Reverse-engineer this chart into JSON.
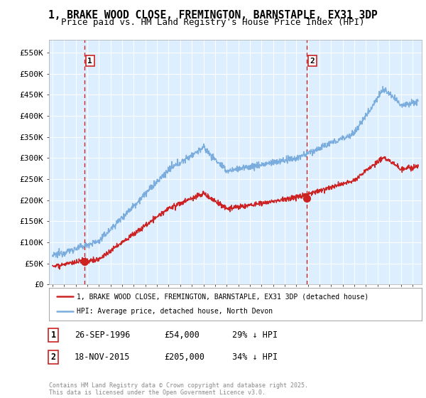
{
  "title1": "1, BRAKE WOOD CLOSE, FREMINGTON, BARNSTAPLE, EX31 3DP",
  "title2": "Price paid vs. HM Land Registry's House Price Index (HPI)",
  "ylabel_ticks": [
    "£0",
    "£50K",
    "£100K",
    "£150K",
    "£200K",
    "£250K",
    "£300K",
    "£350K",
    "£400K",
    "£450K",
    "£500K",
    "£550K"
  ],
  "ytick_vals": [
    0,
    50000,
    100000,
    150000,
    200000,
    250000,
    300000,
    350000,
    400000,
    450000,
    500000,
    550000
  ],
  "ylim": [
    0,
    580000
  ],
  "xlim_start": 1993.7,
  "xlim_end": 2025.8,
  "sale1_x": 1996.73,
  "sale1_y": 54000,
  "sale1_label": "1",
  "sale2_x": 2015.88,
  "sale2_y": 205000,
  "sale2_label": "2",
  "vline1_x": 1996.73,
  "vline2_x": 2015.88,
  "red_line_color": "#cc2222",
  "blue_line_color": "#7aaddd",
  "vline_color": "#cc2222",
  "bg_color": "#ffffff",
  "plot_bg_color": "#ddeeff",
  "grid_color": "#ffffff",
  "legend_entry1": "1, BRAKE WOOD CLOSE, FREMINGTON, BARNSTAPLE, EX31 3DP (detached house)",
  "legend_entry2": "HPI: Average price, detached house, North Devon",
  "table_rows": [
    {
      "num": "1",
      "date": "26-SEP-1996",
      "price": "£54,000",
      "hpi": "29% ↓ HPI"
    },
    {
      "num": "2",
      "date": "18-NOV-2015",
      "price": "£205,000",
      "hpi": "34% ↓ HPI"
    }
  ],
  "footer": "Contains HM Land Registry data © Crown copyright and database right 2025.\nThis data is licensed under the Open Government Licence v3.0.",
  "title_fontsize": 10.5,
  "subtitle_fontsize": 9,
  "tick_fontsize": 8
}
